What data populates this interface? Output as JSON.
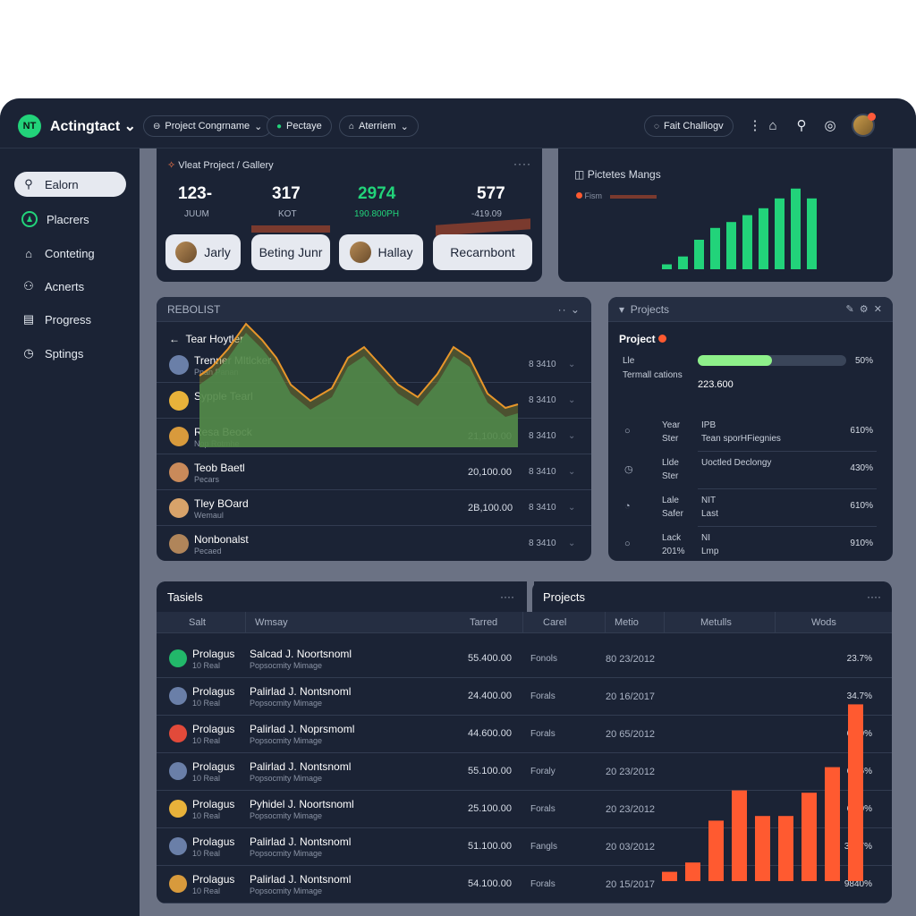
{
  "app": {
    "title": "Actingtact",
    "logo_text": "NT"
  },
  "topbar": {
    "pills": [
      {
        "icon": "⊖",
        "label": "Project Congrname"
      },
      {
        "icon": "●",
        "label": "Pectaye"
      },
      {
        "icon": "⌂",
        "label": "Aterriem"
      }
    ],
    "challenge_label": "Fait Challiogv"
  },
  "sidebar": {
    "items": [
      {
        "label": "Ealorn"
      },
      {
        "label": "Placrers"
      },
      {
        "label": "Conteting"
      },
      {
        "label": "Acnerts"
      },
      {
        "label": "Progress"
      },
      {
        "label": "Sptings"
      }
    ]
  },
  "summary": {
    "breadcrumb": "Vleat Project / Gallery",
    "stats": [
      {
        "value": "123-",
        "label": "JUUM"
      },
      {
        "value": "317",
        "label": "KOT"
      },
      {
        "value": "2974",
        "label": "190.800PH"
      },
      {
        "value": "577",
        "label": "-419.09"
      }
    ],
    "chips": [
      "Jarly",
      "Beting Junr",
      "Hallay",
      "Recarnbont"
    ]
  },
  "activity": {
    "title": "Pictetes Mangs",
    "legend": "Fism",
    "bars": [
      0.05,
      0.13,
      0.3,
      0.42,
      0.48,
      0.55,
      0.62,
      0.72,
      0.82,
      0.72
    ],
    "bar_color": "#22d37a"
  },
  "results": {
    "header": "REBOLIST",
    "sub_header": "Tear Hoytler",
    "rows": [
      {
        "name": "Trenner Mltlcker",
        "sub": "Pnan Panan",
        "amount": "",
        "code": "8 3410"
      },
      {
        "name": "Sypple Tearl",
        "sub": "",
        "amount": "",
        "code": "8 3410"
      },
      {
        "name": "Resa Beock",
        "sub": "Nop Rotmhe",
        "amount": "21,100.00",
        "code": "8 3410"
      },
      {
        "name": "Teob Baetl",
        "sub": "Pecars",
        "amount": "20,100.00",
        "code": "8 3410"
      },
      {
        "name": "Tley BOard",
        "sub": "Wemaul",
        "amount": "2B,100.00",
        "code": "8 3410"
      },
      {
        "name": "Nonbonalst",
        "sub": "Pecaed",
        "amount": "",
        "code": "8 3410"
      }
    ],
    "area_color": "#1f8a66",
    "area_line": "#e8962a"
  },
  "projects_panel": {
    "title": "Projects",
    "project_label": "Project",
    "progress_label": "Lle",
    "progress_value": 0.5,
    "progress_pct": "50%",
    "sub_label": "Termall cations",
    "total": "223.600",
    "rows": [
      {
        "icon": "○",
        "a": "Year\nSter",
        "b": "IPB\nTean sporHFiegnies",
        "pct": "610%"
      },
      {
        "icon": "◷",
        "a": "Llde\nSter",
        "b": "Uoctled Declongy",
        "pct": "430%"
      },
      {
        "icon": "◔",
        "a": "Lale\nSafer",
        "b": "NIT\nLast",
        "pct": "610%"
      },
      {
        "icon": "○",
        "a": "Lack\n201%",
        "b": "NI\nLmp",
        "pct": "910%"
      }
    ]
  },
  "tasks": {
    "title": "Tasiels",
    "projects_title": "Projects",
    "columns": [
      "Salt",
      "Wmsay",
      "Tarred",
      "Carel",
      "Metio",
      "Metulls",
      "Wods"
    ],
    "rows": [
      {
        "c1": "Prolagus",
        "c1s": "10 Real",
        "c2": "Salcad J. Noortsnoml",
        "c2s": "Popsocmity Mimage",
        "c3": "55.400.00",
        "c4": "Fonols",
        "c5": "80 23/2012",
        "c6": "23.7%"
      },
      {
        "c1": "Prolagus",
        "c1s": "10 Real",
        "c2": "Palirlad J. Nontsnoml",
        "c2s": "Popsocmity Mimage",
        "c3": "24.400.00",
        "c4": "Forals",
        "c5": "20 16/2017",
        "c6": "34.7%"
      },
      {
        "c1": "Prolagus",
        "c1s": "10 Real",
        "c2": "Palirlad J. Noprsmoml",
        "c2s": "Popsocmity Mimage",
        "c3": "44.600.00",
        "c4": "Forals",
        "c5": "20 65/2012",
        "c6": "68.0%"
      },
      {
        "c1": "Prolagus",
        "c1s": "10 Real",
        "c2": "Palirlad J. Nontsnoml",
        "c2s": "Popsocmity Mimage",
        "c3": "55.100.00",
        "c4": "Foraly",
        "c5": "20 23/2012",
        "c6": "63.6%"
      },
      {
        "c1": "Prolagus",
        "c1s": "10 Real",
        "c2": "Pyhidel J. Noortsnoml",
        "c2s": "Popsocmity Mimage",
        "c3": "25.100.00",
        "c4": "Forals",
        "c5": "20 23/2012",
        "c6": "68.0%"
      },
      {
        "c1": "Prolagus",
        "c1s": "10 Real",
        "c2": "Palirlad J. Nontsnoml",
        "c2s": "Popsocmity Mimage",
        "c3": "51.100.00",
        "c4": "Fangls",
        "c5": "20 03/2012",
        "c6": "3217%"
      },
      {
        "c1": "Prolagus",
        "c1s": "10 Real",
        "c2": "Palirlad J. Nontsnoml",
        "c2s": "Popsocmity Mimage",
        "c3": "54.100.00",
        "c4": "Forals",
        "c5": "20 15/2017",
        "c6": "9840%"
      }
    ],
    "bars": [
      0.04,
      0.08,
      0.26,
      0.39,
      0.28,
      0.28,
      0.38,
      0.49,
      0.76
    ],
    "bar_color": "#ff5a30"
  }
}
